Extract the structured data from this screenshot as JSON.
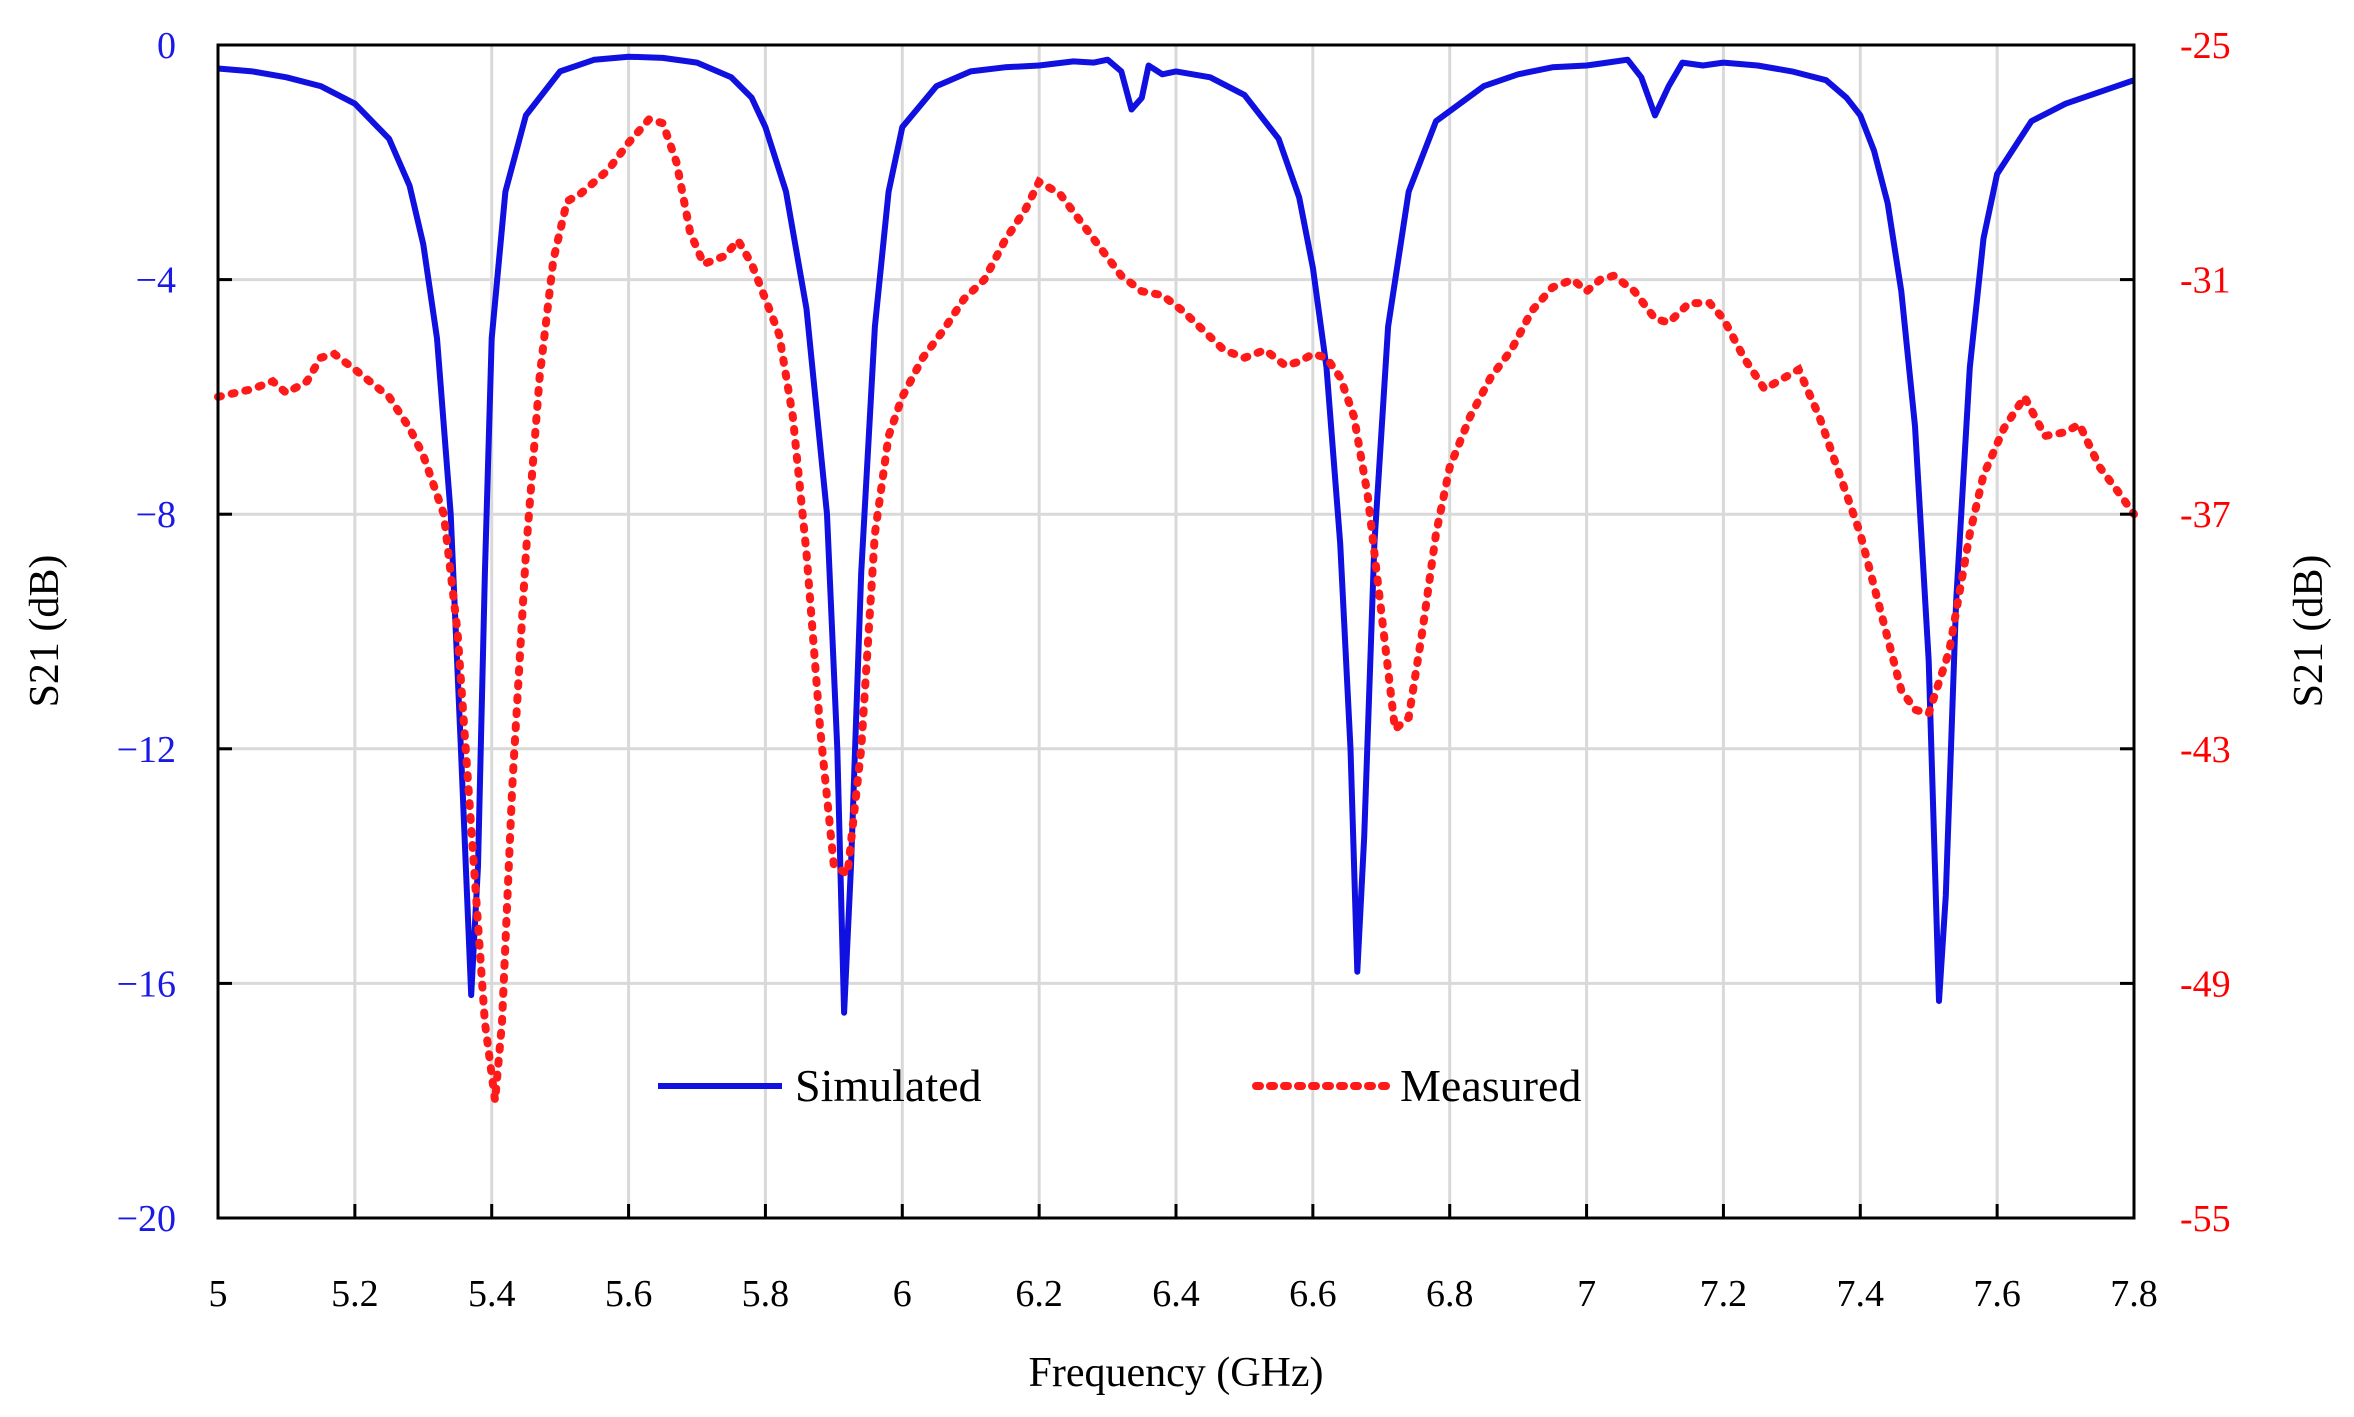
{
  "chart_data": {
    "type": "line",
    "title": "",
    "xlabel": "Frequency  (GHz)",
    "ylabel_left": "S21 (dB)",
    "ylabel_right": "S21 (dB)",
    "xlim": [
      5,
      7.8
    ],
    "ylim_left": [
      -20,
      0
    ],
    "ylim_right": [
      -55,
      -25
    ],
    "x_ticks": [
      "5",
      "5.2",
      "5.4",
      "5.6",
      "5.8",
      "6",
      "6.2",
      "6.4",
      "6.6",
      "6.8",
      "7",
      "7.2",
      "7.4",
      "7.6",
      "7.8"
    ],
    "y_left_ticks": [
      "0",
      "−4",
      "−8",
      "−12",
      "−16",
      "−20"
    ],
    "y_right_ticks": [
      "-25",
      "-31",
      "-37",
      "-43",
      "-49",
      "-55"
    ],
    "grid": true,
    "legend_position": "bottom-center",
    "colors": {
      "simulated": "#1010e0",
      "measured": "#ff1a1a",
      "left_axis": "#1a1ae6",
      "right_axis": "#ff0000"
    },
    "series": [
      {
        "name": "Simulated",
        "axis": "left",
        "style": "solid",
        "points": [
          [
            5.0,
            -0.4
          ],
          [
            5.05,
            -0.45
          ],
          [
            5.1,
            -0.55
          ],
          [
            5.15,
            -0.7
          ],
          [
            5.2,
            -1.0
          ],
          [
            5.25,
            -1.6
          ],
          [
            5.28,
            -2.4
          ],
          [
            5.3,
            -3.4
          ],
          [
            5.32,
            -5.0
          ],
          [
            5.34,
            -8.0
          ],
          [
            5.355,
            -12.0
          ],
          [
            5.37,
            -16.2
          ],
          [
            5.38,
            -14.0
          ],
          [
            5.39,
            -9.0
          ],
          [
            5.4,
            -5.0
          ],
          [
            5.42,
            -2.5
          ],
          [
            5.45,
            -1.2
          ],
          [
            5.5,
            -0.45
          ],
          [
            5.55,
            -0.25
          ],
          [
            5.6,
            -0.2
          ],
          [
            5.65,
            -0.22
          ],
          [
            5.7,
            -0.3
          ],
          [
            5.75,
            -0.55
          ],
          [
            5.78,
            -0.9
          ],
          [
            5.8,
            -1.4
          ],
          [
            5.83,
            -2.5
          ],
          [
            5.86,
            -4.5
          ],
          [
            5.89,
            -8.0
          ],
          [
            5.905,
            -12.0
          ],
          [
            5.915,
            -16.5
          ],
          [
            5.925,
            -14.0
          ],
          [
            5.94,
            -9.0
          ],
          [
            5.96,
            -4.8
          ],
          [
            5.98,
            -2.5
          ],
          [
            6.0,
            -1.4
          ],
          [
            6.05,
            -0.7
          ],
          [
            6.1,
            -0.45
          ],
          [
            6.15,
            -0.38
          ],
          [
            6.2,
            -0.35
          ],
          [
            6.25,
            -0.28
          ],
          [
            6.28,
            -0.3
          ],
          [
            6.3,
            -0.25
          ],
          [
            6.32,
            -0.45
          ],
          [
            6.335,
            -1.1
          ],
          [
            6.35,
            -0.9
          ],
          [
            6.36,
            -0.35
          ],
          [
            6.38,
            -0.5
          ],
          [
            6.4,
            -0.45
          ],
          [
            6.45,
            -0.55
          ],
          [
            6.5,
            -0.85
          ],
          [
            6.55,
            -1.6
          ],
          [
            6.58,
            -2.6
          ],
          [
            6.6,
            -3.8
          ],
          [
            6.62,
            -5.5
          ],
          [
            6.64,
            -8.5
          ],
          [
            6.655,
            -12.0
          ],
          [
            6.665,
            -15.8
          ],
          [
            6.675,
            -13.5
          ],
          [
            6.69,
            -8.5
          ],
          [
            6.71,
            -4.8
          ],
          [
            6.74,
            -2.5
          ],
          [
            6.78,
            -1.3
          ],
          [
            6.85,
            -0.7
          ],
          [
            6.9,
            -0.5
          ],
          [
            6.95,
            -0.38
          ],
          [
            7.0,
            -0.35
          ],
          [
            7.03,
            -0.3
          ],
          [
            7.06,
            -0.25
          ],
          [
            7.08,
            -0.55
          ],
          [
            7.1,
            -1.2
          ],
          [
            7.12,
            -0.7
          ],
          [
            7.14,
            -0.3
          ],
          [
            7.17,
            -0.35
          ],
          [
            7.2,
            -0.3
          ],
          [
            7.25,
            -0.35
          ],
          [
            7.3,
            -0.45
          ],
          [
            7.35,
            -0.6
          ],
          [
            7.38,
            -0.9
          ],
          [
            7.4,
            -1.2
          ],
          [
            7.42,
            -1.8
          ],
          [
            7.44,
            -2.7
          ],
          [
            7.46,
            -4.2
          ],
          [
            7.48,
            -6.5
          ],
          [
            7.5,
            -10.5
          ],
          [
            7.515,
            -16.3
          ],
          [
            7.525,
            -14.5
          ],
          [
            7.54,
            -9.5
          ],
          [
            7.56,
            -5.5
          ],
          [
            7.58,
            -3.3
          ],
          [
            7.6,
            -2.2
          ],
          [
            7.65,
            -1.3
          ],
          [
            7.7,
            -1.0
          ],
          [
            7.75,
            -0.8
          ],
          [
            7.8,
            -0.6
          ]
        ]
      },
      {
        "name": "Measured",
        "axis": "right",
        "style": "dotted",
        "points": [
          [
            5.0,
            -34.0
          ],
          [
            5.05,
            -33.8
          ],
          [
            5.08,
            -33.6
          ],
          [
            5.1,
            -33.9
          ],
          [
            5.13,
            -33.6
          ],
          [
            5.15,
            -33.0
          ],
          [
            5.17,
            -32.9
          ],
          [
            5.2,
            -33.3
          ],
          [
            5.25,
            -34.0
          ],
          [
            5.28,
            -34.8
          ],
          [
            5.3,
            -35.5
          ],
          [
            5.33,
            -37.0
          ],
          [
            5.35,
            -40.0
          ],
          [
            5.37,
            -45.0
          ],
          [
            5.39,
            -50.0
          ],
          [
            5.405,
            -52.0
          ],
          [
            5.415,
            -50.0
          ],
          [
            5.43,
            -44.0
          ],
          [
            5.45,
            -38.0
          ],
          [
            5.47,
            -33.5
          ],
          [
            5.49,
            -30.5
          ],
          [
            5.51,
            -29.0
          ],
          [
            5.53,
            -28.8
          ],
          [
            5.57,
            -28.2
          ],
          [
            5.6,
            -27.5
          ],
          [
            5.63,
            -26.9
          ],
          [
            5.65,
            -27.0
          ],
          [
            5.67,
            -28.0
          ],
          [
            5.69,
            -29.8
          ],
          [
            5.71,
            -30.6
          ],
          [
            5.74,
            -30.4
          ],
          [
            5.76,
            -30.0
          ],
          [
            5.78,
            -30.6
          ],
          [
            5.8,
            -31.5
          ],
          [
            5.82,
            -32.4
          ],
          [
            5.84,
            -34.5
          ],
          [
            5.86,
            -38.0
          ],
          [
            5.88,
            -42.5
          ],
          [
            5.9,
            -46.0
          ],
          [
            5.92,
            -46.2
          ],
          [
            5.94,
            -43.0
          ],
          [
            5.96,
            -37.5
          ],
          [
            5.98,
            -35.0
          ],
          [
            6.0,
            -34.0
          ],
          [
            6.03,
            -33.0
          ],
          [
            6.06,
            -32.3
          ],
          [
            6.09,
            -31.5
          ],
          [
            6.12,
            -31.0
          ],
          [
            6.15,
            -30.0
          ],
          [
            6.18,
            -29.2
          ],
          [
            6.2,
            -28.5
          ],
          [
            6.23,
            -28.8
          ],
          [
            6.26,
            -29.5
          ],
          [
            6.29,
            -30.2
          ],
          [
            6.32,
            -30.9
          ],
          [
            6.35,
            -31.3
          ],
          [
            6.38,
            -31.4
          ],
          [
            6.41,
            -31.8
          ],
          [
            6.44,
            -32.3
          ],
          [
            6.47,
            -32.8
          ],
          [
            6.5,
            -33.0
          ],
          [
            6.53,
            -32.8
          ],
          [
            6.56,
            -33.2
          ],
          [
            6.58,
            -33.1
          ],
          [
            6.6,
            -32.9
          ],
          [
            6.62,
            -33.0
          ],
          [
            6.64,
            -33.5
          ],
          [
            6.66,
            -34.5
          ],
          [
            6.68,
            -36.5
          ],
          [
            6.7,
            -39.5
          ],
          [
            6.72,
            -42.5
          ],
          [
            6.74,
            -42.2
          ],
          [
            6.76,
            -40.0
          ],
          [
            6.78,
            -37.5
          ],
          [
            6.8,
            -35.8
          ],
          [
            6.83,
            -34.5
          ],
          [
            6.86,
            -33.5
          ],
          [
            6.89,
            -32.8
          ],
          [
            6.92,
            -31.8
          ],
          [
            6.95,
            -31.2
          ],
          [
            6.98,
            -31.0
          ],
          [
            7.0,
            -31.3
          ],
          [
            7.02,
            -31.0
          ],
          [
            7.04,
            -30.9
          ],
          [
            7.07,
            -31.3
          ],
          [
            7.1,
            -32.0
          ],
          [
            7.12,
            -32.1
          ],
          [
            7.15,
            -31.6
          ],
          [
            7.18,
            -31.6
          ],
          [
            7.2,
            -32.0
          ],
          [
            7.23,
            -33.0
          ],
          [
            7.26,
            -33.8
          ],
          [
            7.29,
            -33.5
          ],
          [
            7.31,
            -33.3
          ],
          [
            7.34,
            -34.5
          ],
          [
            7.37,
            -36.0
          ],
          [
            7.4,
            -37.5
          ],
          [
            7.43,
            -39.5
          ],
          [
            7.46,
            -41.5
          ],
          [
            7.48,
            -42.0
          ],
          [
            7.5,
            -42.1
          ],
          [
            7.53,
            -40.5
          ],
          [
            7.56,
            -37.5
          ],
          [
            7.58,
            -36.0
          ],
          [
            7.61,
            -34.8
          ],
          [
            7.64,
            -34.0
          ],
          [
            7.67,
            -35.0
          ],
          [
            7.7,
            -34.9
          ],
          [
            7.72,
            -34.7
          ],
          [
            7.75,
            -35.8
          ],
          [
            7.78,
            -36.5
          ],
          [
            7.8,
            -37.0
          ]
        ]
      }
    ]
  }
}
